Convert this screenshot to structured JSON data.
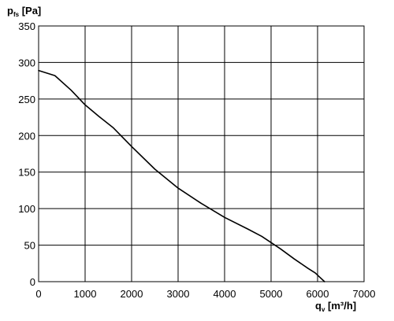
{
  "chart_data": {
    "type": "line",
    "ylabel": {
      "symbol": "p",
      "subscript": "fs",
      "unit": "[Pa]"
    },
    "xlabel": {
      "symbol": "q",
      "subscript": "v",
      "unit": "[m³/h]"
    },
    "xlim": [
      0,
      7000
    ],
    "ylim": [
      0,
      350
    ],
    "x_ticks": [
      0,
      1000,
      2000,
      3000,
      4000,
      5000,
      6000,
      7000
    ],
    "y_ticks": [
      0,
      50,
      100,
      150,
      200,
      250,
      300,
      350
    ],
    "grid": true,
    "series": [
      {
        "color": "#000000",
        "x": [
          0,
          350,
          700,
          1000,
          1300,
          1600,
          2000,
          2500,
          3000,
          3500,
          4000,
          4500,
          4800,
          5200,
          5500,
          5800,
          5950,
          6050,
          6150
        ],
        "y": [
          289,
          282,
          262,
          242,
          226,
          211,
          185,
          154,
          128,
          107,
          88,
          72,
          62,
          45,
          31,
          18,
          12,
          6,
          0
        ]
      }
    ]
  }
}
